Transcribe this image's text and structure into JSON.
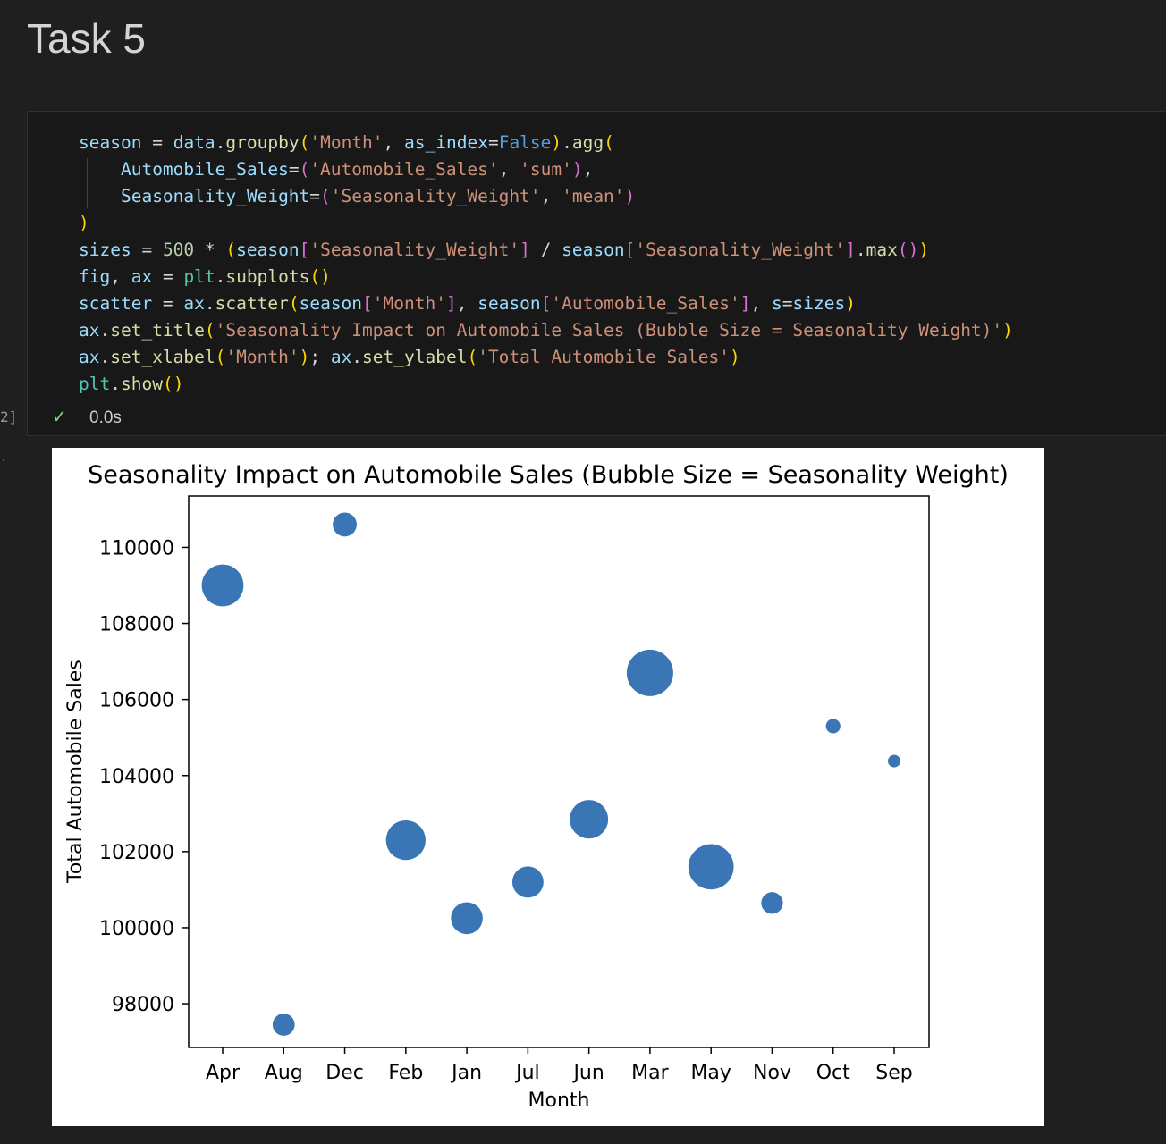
{
  "heading": "Task 5",
  "cell": {
    "execution_count": "2]",
    "status_icon": "check-icon",
    "duration": "0.0s",
    "output_marker": "."
  },
  "chart_data": {
    "type": "scatter",
    "title": "Seasonality Impact on Automobile Sales (Bubble Size = Seasonality Weight)",
    "xlabel": "Month",
    "ylabel": "Total Automobile Sales",
    "categories": [
      "Apr",
      "Aug",
      "Dec",
      "Feb",
      "Jan",
      "Jul",
      "Jun",
      "Mar",
      "May",
      "Nov",
      "Oct",
      "Sep"
    ],
    "values": [
      109000,
      97450,
      110600,
      102300,
      100250,
      101200,
      102850,
      106700,
      101600,
      100650,
      105300,
      104380
    ],
    "sizes": [
      500,
      140,
      165,
      450,
      290,
      280,
      425,
      620,
      590,
      135,
      60,
      45
    ],
    "ylim": [
      96850,
      111350
    ],
    "yticks": [
      98000,
      100000,
      102000,
      104000,
      106000,
      108000,
      110000
    ],
    "marker_color": "#3a76b5",
    "grid": false
  }
}
